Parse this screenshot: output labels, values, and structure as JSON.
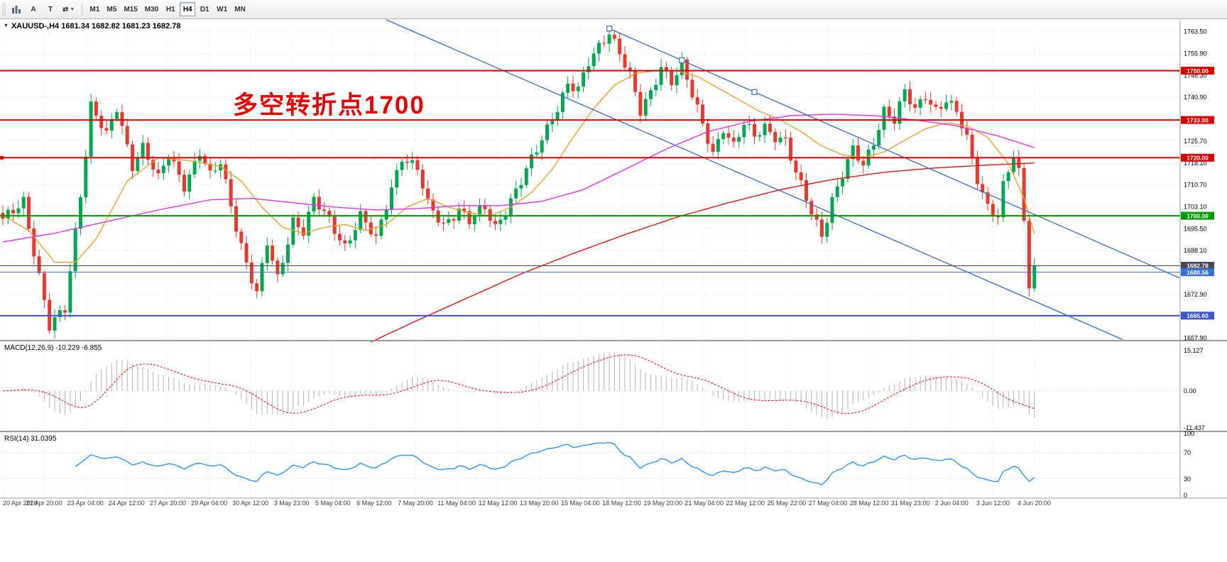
{
  "toolbar": {
    "tool_buttons": [
      "A",
      "T"
    ],
    "timeframes": [
      "M1",
      "M5",
      "M15",
      "M30",
      "H1",
      "H4",
      "D1",
      "W1",
      "MN"
    ],
    "active_timeframe": "H4"
  },
  "chart": {
    "symbol_line": "XAUUSD-,H4  1681.34 1682.82 1681.23 1682.78",
    "annotation": {
      "text": "多空转折点1700",
      "color": "#e60000"
    }
  },
  "macd": {
    "label": "MACD(12,26,9) -10.229 -6.855",
    "scale_labels": [
      "15.127",
      "0.00",
      "-11.437"
    ]
  },
  "rsi": {
    "label": "RSI(14) 31.0395",
    "scale_labels": [
      "100",
      "70",
      "30",
      "0"
    ]
  },
  "chart_data": {
    "type": "candlestick",
    "symbol": "XAUUSD-",
    "timeframe": "H4",
    "ohlc_current": {
      "open": 1681.34,
      "high": 1682.82,
      "low": 1681.23,
      "close": 1682.78
    },
    "price_axis": {
      "min": 1657.0,
      "max": 1767.5,
      "ticks": [
        1763.5,
        1755.9,
        1748.3,
        1740.9,
        1725.7,
        1718.1,
        1710.7,
        1703.1,
        1695.5,
        1688.1,
        1672.9,
        1657.9
      ]
    },
    "time_labels": [
      "20 Apr 2020",
      "21 Apr 20:00",
      "23 Apr 04:00",
      "24 Apr 12:00",
      "27 Apr 20:00",
      "29 Apr 04:00",
      "30 Apr 12:00",
      "3 May 23:00",
      "5 May 04:00",
      "6 May 12:00",
      "7 May 20:00",
      "11 May 04:00",
      "12 May 12:00",
      "13 May 20:00",
      "15 May 04:00",
      "18 May 12:00",
      "19 May 20:00",
      "21 May 04:00",
      "22 May 12:00",
      "25 May 22:00",
      "27 May 04:00",
      "28 May 12:00",
      "31 May 23:00",
      "2 Jun 04:00",
      "3 Jun 12:00",
      "4 Jun 20:00"
    ],
    "num_candles": 200,
    "candles_anchor_closes": [
      [
        0,
        1698
      ],
      [
        4,
        1706
      ],
      [
        9,
        1661
      ],
      [
        12,
        1668
      ],
      [
        16,
        1722
      ],
      [
        17,
        1738
      ],
      [
        20,
        1727
      ],
      [
        22,
        1737
      ],
      [
        25,
        1718
      ],
      [
        27,
        1724
      ],
      [
        30,
        1712
      ],
      [
        32,
        1721
      ],
      [
        35,
        1711
      ],
      [
        38,
        1722
      ],
      [
        40,
        1713
      ],
      [
        42,
        1718
      ],
      [
        45,
        1697
      ],
      [
        47,
        1684
      ],
      [
        49,
        1673
      ],
      [
        51,
        1690
      ],
      [
        53,
        1678
      ],
      [
        56,
        1699
      ],
      [
        58,
        1695
      ],
      [
        60,
        1705
      ],
      [
        63,
        1698
      ],
      [
        66,
        1690
      ],
      [
        69,
        1700
      ],
      [
        72,
        1691
      ],
      [
        75,
        1710
      ],
      [
        77,
        1721
      ],
      [
        80,
        1716
      ],
      [
        82,
        1703
      ],
      [
        85,
        1697
      ],
      [
        88,
        1703
      ],
      [
        90,
        1698
      ],
      [
        93,
        1702
      ],
      [
        95,
        1696
      ],
      [
        98,
        1706
      ],
      [
        100,
        1712
      ],
      [
        103,
        1722
      ],
      [
        106,
        1734
      ],
      [
        109,
        1746
      ],
      [
        111,
        1743
      ],
      [
        113,
        1752
      ],
      [
        115,
        1758
      ],
      [
        117,
        1764
      ],
      [
        119,
        1757
      ],
      [
        121,
        1748
      ],
      [
        123,
        1735
      ],
      [
        125,
        1742
      ],
      [
        127,
        1752
      ],
      [
        129,
        1747
      ],
      [
        131,
        1752
      ],
      [
        133,
        1741
      ],
      [
        135,
        1731
      ],
      [
        137,
        1722
      ],
      [
        139,
        1731
      ],
      [
        141,
        1724
      ],
      [
        143,
        1731
      ],
      [
        145,
        1727
      ],
      [
        147,
        1731
      ],
      [
        149,
        1728
      ],
      [
        151,
        1726
      ],
      [
        153,
        1714
      ],
      [
        156,
        1701
      ],
      [
        158,
        1694
      ],
      [
        160,
        1706
      ],
      [
        162,
        1714
      ],
      [
        164,
        1722
      ],
      [
        166,
        1717
      ],
      [
        168,
        1726
      ],
      [
        170,
        1737
      ],
      [
        172,
        1733
      ],
      [
        174,
        1742
      ],
      [
        176,
        1736
      ],
      [
        178,
        1742
      ],
      [
        180,
        1737
      ],
      [
        182,
        1740
      ],
      [
        184,
        1735
      ],
      [
        186,
        1726
      ],
      [
        188,
        1713
      ],
      [
        190,
        1704
      ],
      [
        192,
        1700
      ],
      [
        193,
        1710
      ],
      [
        195,
        1720
      ],
      [
        196,
        1714
      ],
      [
        197,
        1698
      ],
      [
        198,
        1675
      ],
      [
        199,
        1682.78
      ]
    ],
    "horizontal_levels": [
      {
        "price": 1750.0,
        "label": "1750.00",
        "color": "#dd0000",
        "width": 2
      },
      {
        "price": 1733.0,
        "label": "1733.00",
        "color": "#dd0000",
        "width": 2
      },
      {
        "price": 1720.0,
        "label": "1720.00",
        "color": "#dd0000",
        "width": 2,
        "left_handle": true
      },
      {
        "price": 1700.0,
        "label": "1700.00",
        "color": "#009a00",
        "width": 2
      },
      {
        "price": 1682.78,
        "label": "1682.78",
        "color": "#474753",
        "width": 1
      },
      {
        "price": 1680.56,
        "label": "1680.56",
        "color": "#3a6fd8",
        "width": 1
      },
      {
        "price": 1665.6,
        "label": "1665.60",
        "color": "#3c55cc",
        "width": 2
      }
    ],
    "moving_averages": [
      {
        "name": "ma-fast-orange",
        "color": "#f0a030",
        "points": [
          [
            0,
            1700
          ],
          [
            5,
            1695
          ],
          [
            10,
            1684
          ],
          [
            14,
            1684
          ],
          [
            18,
            1692
          ],
          [
            24,
            1712
          ],
          [
            30,
            1720
          ],
          [
            36,
            1719
          ],
          [
            42,
            1717
          ],
          [
            46,
            1712
          ],
          [
            50,
            1703
          ],
          [
            54,
            1696
          ],
          [
            58,
            1694
          ],
          [
            62,
            1696
          ],
          [
            66,
            1697
          ],
          [
            70,
            1695
          ],
          [
            74,
            1697
          ],
          [
            78,
            1703
          ],
          [
            82,
            1706
          ],
          [
            86,
            1703
          ],
          [
            90,
            1701
          ],
          [
            94,
            1700
          ],
          [
            98,
            1703
          ],
          [
            102,
            1708
          ],
          [
            106,
            1716
          ],
          [
            110,
            1727
          ],
          [
            114,
            1737
          ],
          [
            118,
            1745
          ],
          [
            122,
            1749
          ],
          [
            126,
            1750
          ],
          [
            130,
            1750
          ],
          [
            134,
            1748
          ],
          [
            138,
            1744
          ],
          [
            142,
            1740
          ],
          [
            146,
            1736
          ],
          [
            150,
            1733
          ],
          [
            154,
            1729
          ],
          [
            158,
            1724
          ],
          [
            162,
            1721
          ],
          [
            166,
            1720
          ],
          [
            170,
            1722
          ],
          [
            174,
            1726
          ],
          [
            178,
            1730
          ],
          [
            182,
            1732
          ],
          [
            186,
            1731
          ],
          [
            190,
            1727
          ],
          [
            194,
            1718
          ],
          [
            197,
            1706
          ],
          [
            199,
            1694
          ]
        ]
      },
      {
        "name": "ma-mid-magenta",
        "color": "#e632e6",
        "points": [
          [
            0,
            1691
          ],
          [
            10,
            1694
          ],
          [
            20,
            1698
          ],
          [
            30,
            1702
          ],
          [
            40,
            1705.5
          ],
          [
            48,
            1706
          ],
          [
            56,
            1704.5
          ],
          [
            64,
            1703
          ],
          [
            72,
            1702
          ],
          [
            80,
            1702.5
          ],
          [
            88,
            1703.5
          ],
          [
            96,
            1703.5
          ],
          [
            104,
            1705
          ],
          [
            112,
            1709
          ],
          [
            120,
            1716
          ],
          [
            128,
            1723
          ],
          [
            136,
            1729
          ],
          [
            144,
            1732.5
          ],
          [
            152,
            1734.5
          ],
          [
            160,
            1735
          ],
          [
            168,
            1734.5
          ],
          [
            176,
            1733
          ],
          [
            184,
            1731
          ],
          [
            192,
            1727.5
          ],
          [
            199,
            1723.5
          ]
        ]
      },
      {
        "name": "ma-slow-red",
        "color": "#e01414",
        "points": [
          [
            71,
            1656.5
          ],
          [
            80,
            1664
          ],
          [
            90,
            1672
          ],
          [
            100,
            1680
          ],
          [
            110,
            1687
          ],
          [
            120,
            1693.5
          ],
          [
            130,
            1699.5
          ],
          [
            140,
            1704.5
          ],
          [
            150,
            1709
          ],
          [
            160,
            1712.5
          ],
          [
            170,
            1715
          ],
          [
            180,
            1716.5
          ],
          [
            190,
            1717.5
          ],
          [
            199,
            1718.2
          ]
        ]
      }
    ],
    "trendlines": [
      {
        "name": "descending-trendline-long",
        "color": "#3b6bc8",
        "x1_idx": 74,
        "p1": 1767.5,
        "x2_idx": 216,
        "p2": 1657.4
      },
      {
        "name": "descending-trendline-peaks",
        "color": "#3b6bc8",
        "x1_idx": 117,
        "p1": 1764.5,
        "x2_idx": 227,
        "p2": 1678.6,
        "handles_idx": [
          117,
          131,
          145
        ]
      }
    ],
    "colors": {
      "up": "#00a651",
      "down": "#e8392f",
      "grid": "#e3e3e3",
      "background": "#ffffff"
    },
    "macd_series": {
      "params": [
        12,
        26,
        9
      ],
      "current_main": -10.229,
      "current_signal": -6.855,
      "axis": [
        15.127,
        0,
        -11.437
      ]
    },
    "rsi_series": {
      "period": 14,
      "current": 31.0395,
      "levels": [
        70,
        30
      ],
      "axis": [
        0,
        100
      ]
    }
  }
}
